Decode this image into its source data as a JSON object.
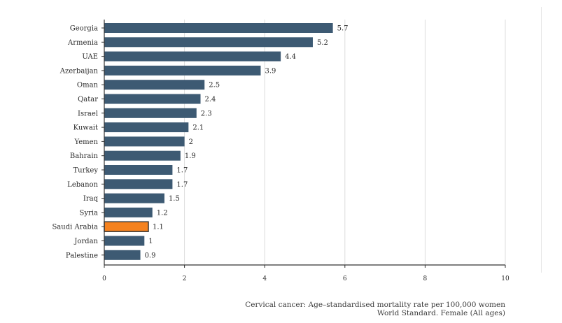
{
  "chart_data": {
    "type": "bar",
    "orientation": "horizontal",
    "categories": [
      "Georgia",
      "Armenia",
      "UAE",
      "Azerbaijan",
      "Oman",
      "Qatar",
      "Israel",
      "Kuwait",
      "Yemen",
      "Bahrain",
      "Turkey",
      "Lebanon",
      "Iraq",
      "Syria",
      "Saudi Arabia",
      "Jordan",
      "Palestine"
    ],
    "values": [
      5.7,
      5.2,
      4.4,
      3.9,
      2.5,
      2.4,
      2.3,
      2.1,
      2,
      1.9,
      1.7,
      1.7,
      1.5,
      1.2,
      1.1,
      1,
      0.9
    ],
    "value_labels": [
      "5.7",
      "5.2",
      "4.4",
      "3.9",
      "2.5",
      "2.4",
      "2.3",
      "2.1",
      "2",
      "1.9",
      "1.7",
      "1.7",
      "1.5",
      "1.2",
      "1.1",
      "1",
      "0.9"
    ],
    "highlight": "Saudi Arabia",
    "xlim": [
      0,
      10
    ],
    "xticks": [
      0,
      2,
      4,
      6,
      8,
      10
    ],
    "grid": true,
    "colors": {
      "bar": "#3d5a73",
      "highlight": "#f5821f",
      "highlight_border": "#3a3a3a",
      "grid": "#dcdcdc",
      "axis": "#333333"
    }
  },
  "caption": {
    "line1": "Cervical cancer: Age–standardised mortality rate per 100,000 women",
    "line2": "World Standard. Female (All ages)"
  }
}
